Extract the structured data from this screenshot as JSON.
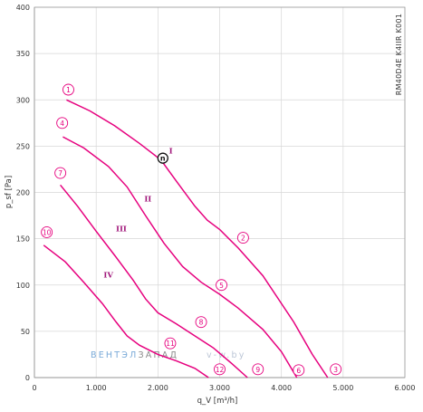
{
  "chart_data": {
    "type": "line",
    "xlabel": "q_V [m³/h]",
    "ylabel": "p_sf [Pa]",
    "xlim": [
      0,
      6000
    ],
    "ylim": [
      0,
      400
    ],
    "x_ticks": [
      "0",
      "1.000",
      "2.000",
      "3.000",
      "4.000",
      "5.000",
      "6.000"
    ],
    "y_ticks": [
      "0",
      "50",
      "100",
      "150",
      "200",
      "250",
      "300",
      "350",
      "400"
    ],
    "grid": true,
    "model_label": "RM40D4E K4IIR K001",
    "watermark": {
      "part1": "ВЕНТЭЛ",
      "part2": "ЗАПАД",
      "part3": "v-w.by"
    },
    "series": [
      {
        "roman": "I",
        "x": [
          520,
          900,
          1300,
          1700,
          2050,
          2300,
          2600,
          2800,
          3000,
          3300,
          3700,
          4200,
          4500,
          4750
        ],
        "y": [
          300,
          288,
          272,
          253,
          235,
          212,
          185,
          170,
          160,
          140,
          110,
          60,
          25,
          0
        ]
      },
      {
        "roman": "II",
        "x": [
          460,
          800,
          1200,
          1500,
          1800,
          2100,
          2400,
          2700,
          3000,
          3300,
          3700,
          4000,
          4250
        ],
        "y": [
          260,
          248,
          228,
          206,
          175,
          145,
          120,
          103,
          90,
          75,
          52,
          28,
          0
        ]
      },
      {
        "roman": "III",
        "x": [
          420,
          700,
          1000,
          1300,
          1600,
          1800,
          2000,
          2300,
          2600,
          2900,
          3200,
          3450
        ],
        "y": [
          208,
          185,
          158,
          132,
          105,
          85,
          70,
          58,
          45,
          32,
          15,
          0
        ]
      },
      {
        "roman": "IV",
        "x": [
          150,
          500,
          800,
          1100,
          1300,
          1500,
          1700,
          2000,
          2300,
          2600,
          2820
        ],
        "y": [
          143,
          125,
          103,
          80,
          62,
          45,
          35,
          25,
          18,
          10,
          0
        ]
      }
    ],
    "operating_points": [
      {
        "label": "1",
        "x": 550,
        "y": 311
      },
      {
        "label": "4",
        "x": 450,
        "y": 275
      },
      {
        "label": "7",
        "x": 420,
        "y": 221
      },
      {
        "label": "10",
        "x": 200,
        "y": 157
      },
      {
        "label": "2",
        "x": 3380,
        "y": 151
      },
      {
        "label": "5",
        "x": 3030,
        "y": 100
      },
      {
        "label": "8",
        "x": 2700,
        "y": 60
      },
      {
        "label": "11",
        "x": 2200,
        "y": 37
      },
      {
        "label": "12",
        "x": 3000,
        "y": 9
      },
      {
        "label": "9",
        "x": 3620,
        "y": 9
      },
      {
        "label": "6",
        "x": 4280,
        "y": 8
      },
      {
        "label": "3",
        "x": 4880,
        "y": 9
      }
    ],
    "roman_labels": [
      {
        "text": "I",
        "x": 2180,
        "y": 242
      },
      {
        "text": "II",
        "x": 1780,
        "y": 190
      },
      {
        "text": "III",
        "x": 1320,
        "y": 158
      },
      {
        "text": "IV",
        "x": 1120,
        "y": 108
      }
    ],
    "design_point": {
      "label": "n",
      "x": 2080,
      "y": 237
    }
  }
}
